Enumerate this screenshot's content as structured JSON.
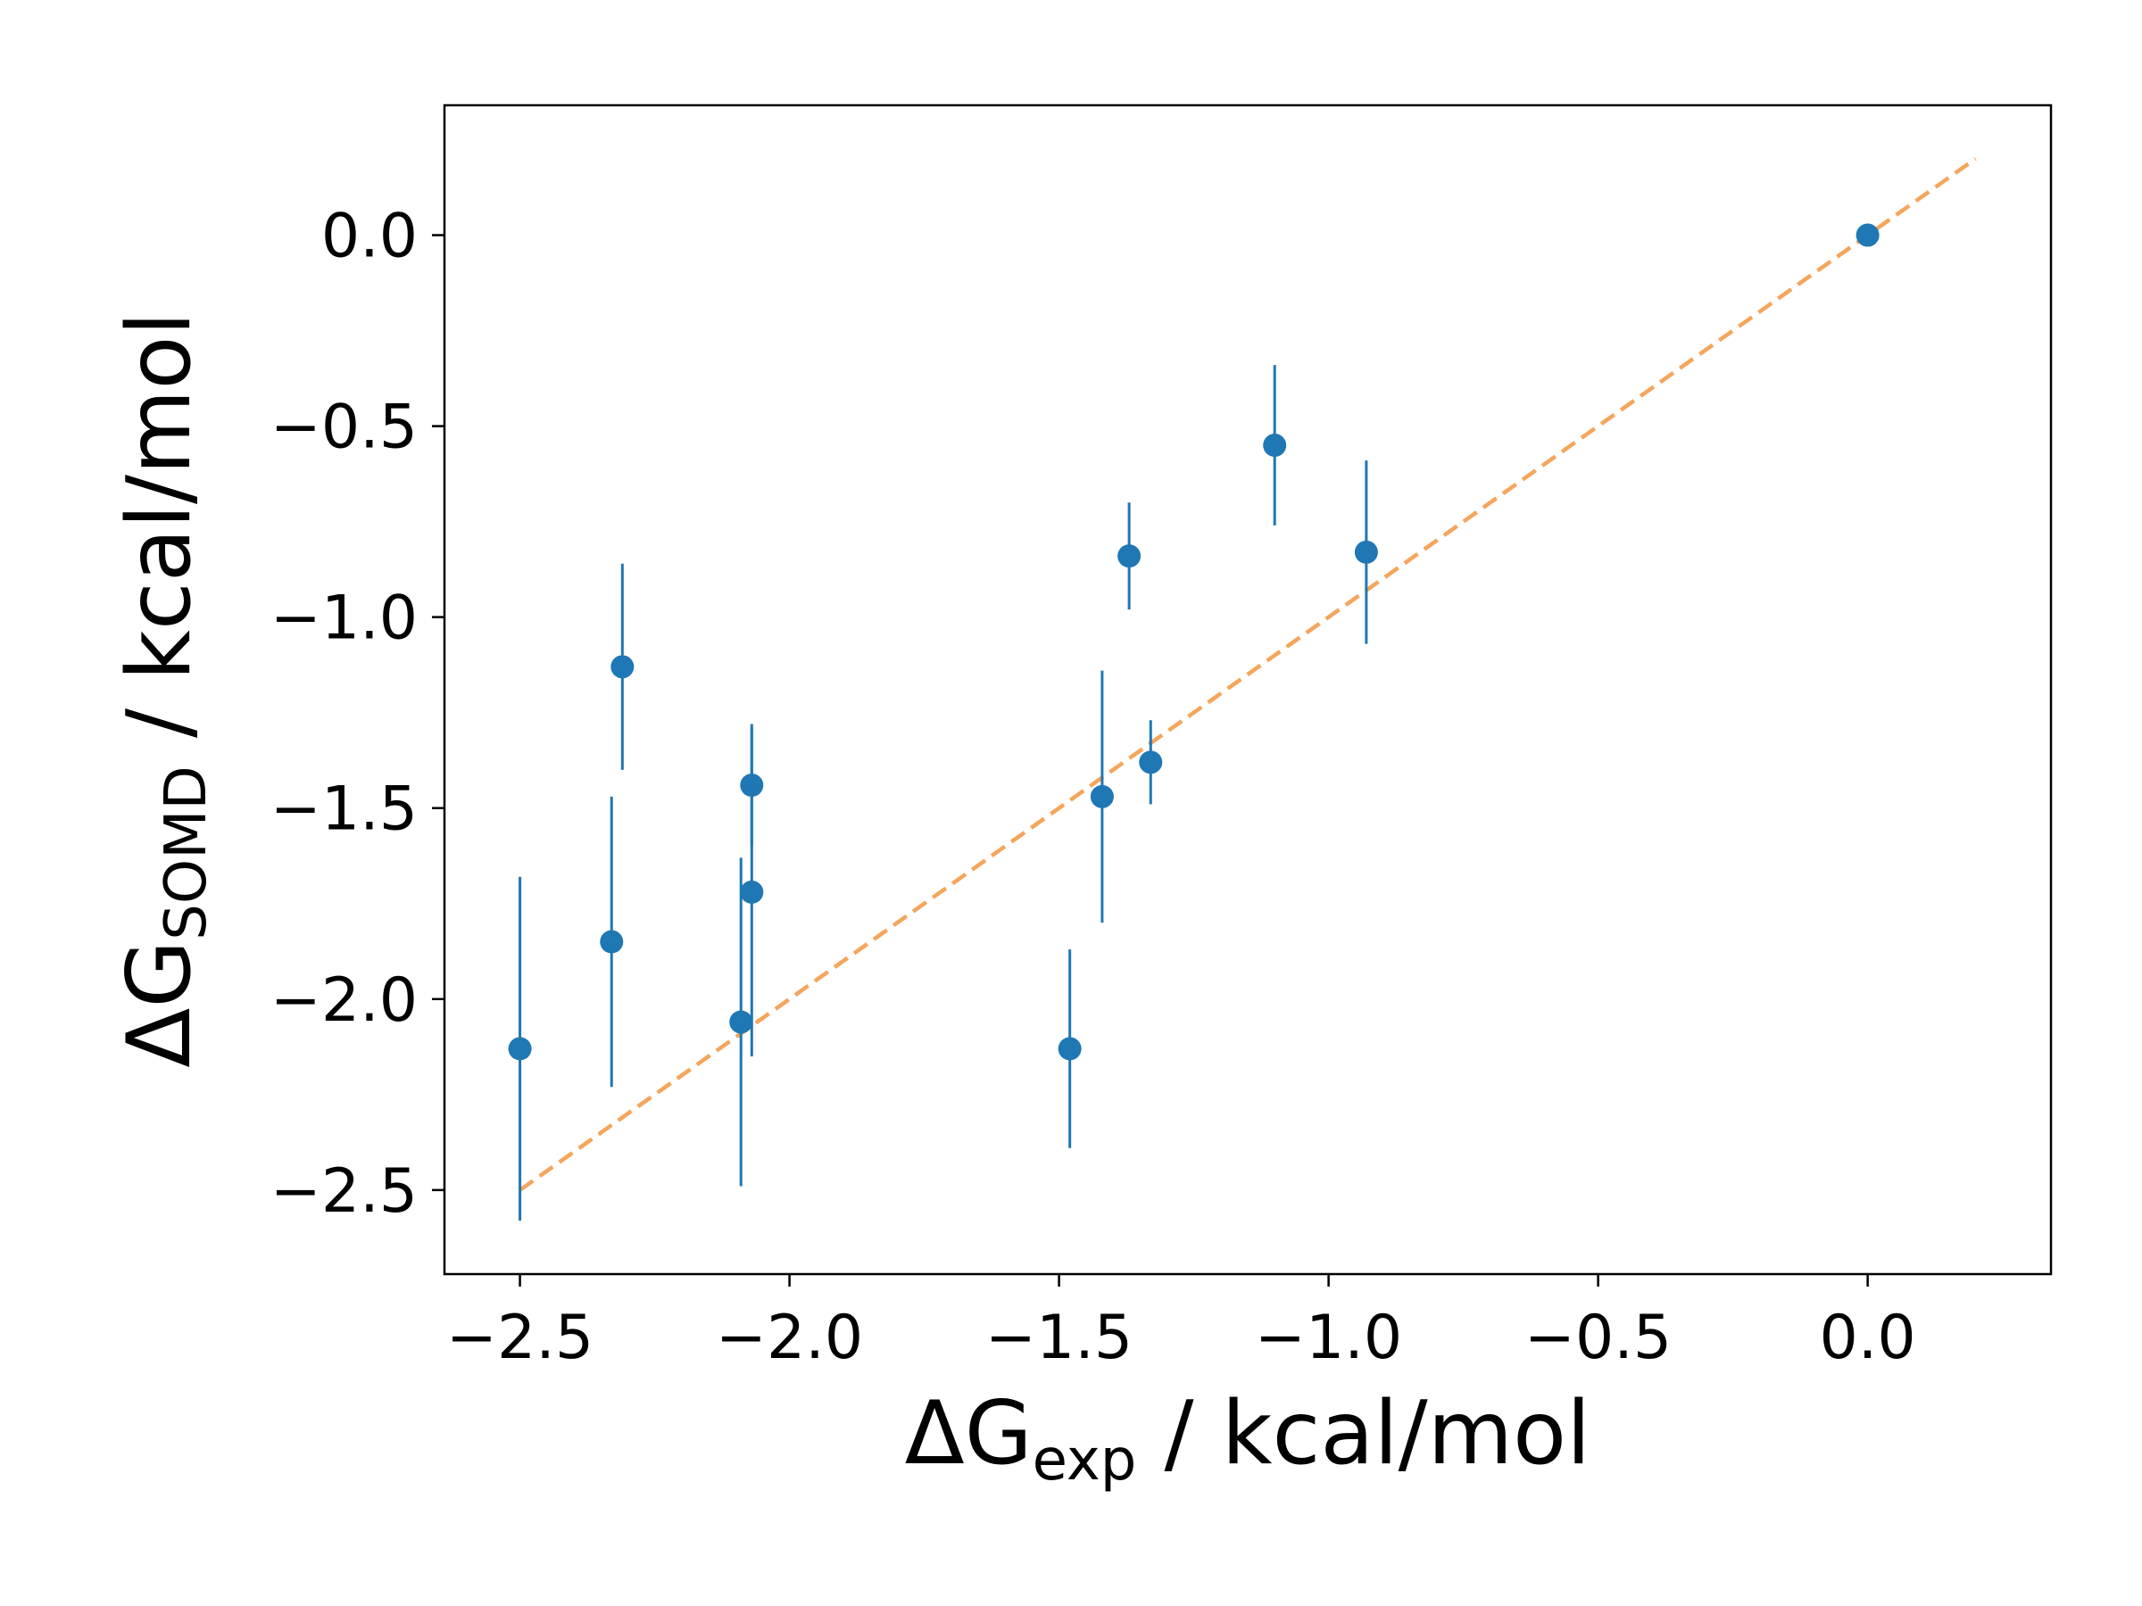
{
  "chart_data": {
    "type": "scatter",
    "xlabel": {
      "main": "ΔG",
      "sub": "exp",
      "rest": " / kcal/mol"
    },
    "ylabel": {
      "main": "ΔG",
      "sub": "SOMD",
      "rest": " / kcal/mol"
    },
    "xlim": [
      -2.64,
      0.34
    ],
    "ylim": [
      -2.72,
      0.34
    ],
    "xticks": [
      -2.5,
      -2.0,
      -1.5,
      -1.0,
      -0.5,
      0.0
    ],
    "yticks": [
      -2.5,
      -2.0,
      -1.5,
      -1.0,
      -0.5,
      0.0
    ],
    "xtick_labels": [
      "−2.5",
      "−2.0",
      "−1.5",
      "−1.0",
      "−0.5",
      "0.0"
    ],
    "ytick_labels": [
      "−2.5",
      "−2.0",
      "−1.5",
      "−1.0",
      "−0.5",
      "0.0"
    ],
    "grid": false,
    "series": [
      {
        "color": "#1f77b4",
        "points": [
          {
            "x": -2.5,
            "y": -2.13,
            "err": 0.45
          },
          {
            "x": -2.33,
            "y": -1.85,
            "err": 0.38
          },
          {
            "x": -2.31,
            "y": -1.13,
            "err": 0.27
          },
          {
            "x": -2.09,
            "y": -2.06,
            "err": 0.43
          },
          {
            "x": -2.07,
            "y": -1.44,
            "err": 0.16
          },
          {
            "x": -2.07,
            "y": -1.72,
            "err": 0.43
          },
          {
            "x": -1.48,
            "y": -2.13,
            "err": 0.26
          },
          {
            "x": -1.42,
            "y": -1.47,
            "err": 0.33
          },
          {
            "x": -1.37,
            "y": -0.84,
            "err": 0.14
          },
          {
            "x": -1.33,
            "y": -1.38,
            "err": 0.11
          },
          {
            "x": -1.1,
            "y": -0.55,
            "err": 0.21
          },
          {
            "x": -0.93,
            "y": -0.83,
            "err": 0.24
          },
          {
            "x": 0.0,
            "y": 0.0,
            "err": 0.0
          }
        ]
      }
    ],
    "reference_line": {
      "x": [
        -2.5,
        0.2
      ],
      "y": [
        -2.5,
        0.2
      ],
      "color": "#f5a55c",
      "style": "dashed"
    }
  }
}
